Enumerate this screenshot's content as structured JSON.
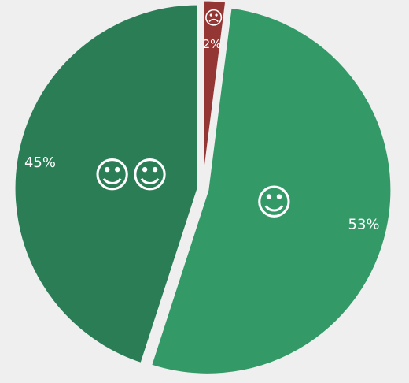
{
  "chart_data": {
    "type": "pie",
    "categories": [
      "☹",
      "☺",
      "☺☺"
    ],
    "values": [
      2,
      53,
      45
    ],
    "value_labels": [
      "2%",
      "53%",
      "45%"
    ],
    "colors": [
      "#943634",
      "#339966",
      "#2a7d55"
    ]
  }
}
